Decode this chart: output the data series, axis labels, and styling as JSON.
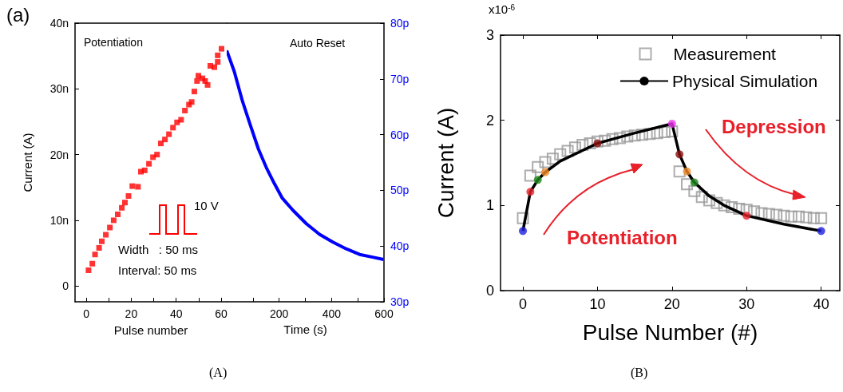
{
  "chart_data": [
    {
      "type": "scatter",
      "xlabel": "Pulse number",
      "ylabel": "Current (A)",
      "marker": "square",
      "color": "#ff0000",
      "xlim": [
        -5,
        62.5
      ],
      "xticks": [
        0,
        {
          "value": 10,
          "label": null
        },
        20,
        {
          "value": 30,
          "label": null
        },
        40,
        {
          "value": 50,
          "label": null
        },
        60
      ],
      "ylim": [
        -2.4,
        40
      ],
      "yticks": [
        0,
        {
          "value": 10,
          "label": "10n"
        },
        {
          "value": 20,
          "label": "20n"
        },
        {
          "value": 30,
          "label": "30n"
        },
        {
          "value": 40,
          "label": "40n"
        }
      ],
      "x": [
        1,
        2.7,
        3.9,
        5.7,
        6.9,
        8.7,
        10.5,
        12.2,
        14,
        15.8,
        17.2,
        18.8,
        20.5,
        23,
        24.3,
        26,
        27.9,
        29.7,
        31.5,
        33.2,
        35,
        36.8,
        38.6,
        40.4,
        42.2,
        43.9,
        45.7,
        46.9,
        48.1,
        49.3,
        49.9,
        51.7,
        52.9,
        54,
        55.2,
        57,
        58.5,
        58.5,
        60.2
      ],
      "values": [
        2.4,
        3.4,
        4.8,
        5.8,
        6.8,
        7.8,
        8.9,
        10,
        10.9,
        11.9,
        12.7,
        13.7,
        15.2,
        15.1,
        17.4,
        17.6,
        18.6,
        19.6,
        20,
        21.7,
        22.3,
        23.1,
        24.1,
        24.9,
        25.3,
        26.7,
        27.6,
        28,
        29.6,
        31.2,
        32,
        31.6,
        31.2,
        30.6,
        33.5,
        33.3,
        34.1,
        35.1,
        36.1
      ],
      "annotations": [
        "(a)",
        "Potentiation",
        "10 V",
        "Width   : 50 ms",
        "Interval: 50 ms",
        "(A)"
      ]
    },
    {
      "type": "line",
      "xlabel": "Time (s)",
      "marker": "none",
      "xlim": [
        0,
        600
      ],
      "xticks": [
        {
          "value": 100,
          "label": null
        },
        200,
        {
          "value": 300,
          "label": null
        },
        400,
        {
          "value": 500,
          "label": null
        },
        600
      ],
      "y2lim": [
        30,
        80
      ],
      "y2ticks": [
        {
          "value": 30,
          "label": "30p"
        },
        {
          "value": 40,
          "label": "40p"
        },
        {
          "value": 50,
          "label": "50p"
        },
        {
          "value": 60,
          "label": "60p"
        },
        {
          "value": 70,
          "label": "70p"
        },
        {
          "value": 80,
          "label": "80p"
        }
      ],
      "series": [
        {
          "color": "#0000ff",
          "axis": "y2",
          "x": [
            0,
            29,
            60,
            90,
            121,
            151,
            182,
            212,
            253,
            304,
            354,
            405,
            456,
            507,
            557,
            598
          ],
          "values": [
            75.1,
            71.3,
            66,
            61.7,
            57.4,
            54.1,
            51.2,
            48.6,
            46.4,
            44,
            42.1,
            40.7,
            39.5,
            38.5,
            38,
            37.6
          ]
        }
      ],
      "annotations": [
        "Auto Reset"
      ]
    },
    {
      "type": "line",
      "xlabel": "Pulse Number (#)",
      "ylabel": "Current (A)",
      "xlim": [
        -3,
        42.5
      ],
      "xticks": [
        0,
        10,
        20,
        30,
        40
      ],
      "ylim": [
        0,
        3
      ],
      "yticks": [
        0,
        1,
        2,
        3
      ],
      "legend": "top right",
      "series": [
        {
          "name": "Measurement",
          "type": "scatter",
          "marker": "square",
          "color": "#999999",
          "x": [
            0,
            1,
            2,
            3,
            4,
            5,
            6,
            7,
            8,
            9,
            10,
            11,
            12,
            13,
            14,
            15,
            16,
            17,
            18,
            19,
            20,
            21,
            22,
            23,
            24,
            25,
            26,
            27,
            28,
            29,
            30,
            31,
            32,
            33,
            34,
            35,
            36,
            37,
            38,
            39,
            40
          ],
          "values": [
            0.85,
            1.35,
            1.45,
            1.51,
            1.55,
            1.6,
            1.64,
            1.68,
            1.71,
            1.73,
            1.75,
            1.76,
            1.78,
            1.79,
            1.81,
            1.82,
            1.83,
            1.84,
            1.85,
            1.86,
            1.87,
            1.4,
            1.25,
            1.17,
            1.1,
            1.06,
            1.03,
            1,
            0.98,
            0.96,
            0.95,
            0.93,
            0.91,
            0.9,
            0.89,
            0.88,
            0.87,
            0.87,
            0.86,
            0.85,
            0.85
          ]
        },
        {
          "name": "Physical Simulation",
          "type": "line",
          "marker": "none",
          "color": "#000000",
          "x": [
            0,
            1,
            2,
            3,
            5,
            10,
            15,
            20,
            21,
            22,
            23,
            25,
            27,
            30,
            35,
            40
          ],
          "values": [
            0.7,
            1.16,
            1.3,
            1.39,
            1.52,
            1.73,
            1.85,
            1.96,
            1.6,
            1.4,
            1.27,
            1.11,
            1,
            0.88,
            0.78,
            0.7
          ]
        },
        {
          "type": "scatter",
          "marker": "circle",
          "x": [
            0,
            1,
            2,
            3,
            10,
            20,
            21,
            22,
            23,
            30,
            40
          ],
          "values": [
            0.7,
            1.16,
            1.3,
            1.39,
            1.73,
            1.96,
            1.6,
            1.4,
            1.27,
            0.88,
            0.7
          ],
          "colors": [
            "#1f1fe0",
            "#e8202a",
            "#1e8a1e",
            "#f28c28",
            "#8b0f0f",
            "#ee33ee",
            "#8b0f0f",
            "#f28c28",
            "#1e8a1e",
            "#e8202a",
            "#1f1fe0"
          ]
        }
      ],
      "annotations": [
        "x10$^{-6}$",
        "Potentiation",
        "Depression",
        "(B)"
      ]
    }
  ]
}
